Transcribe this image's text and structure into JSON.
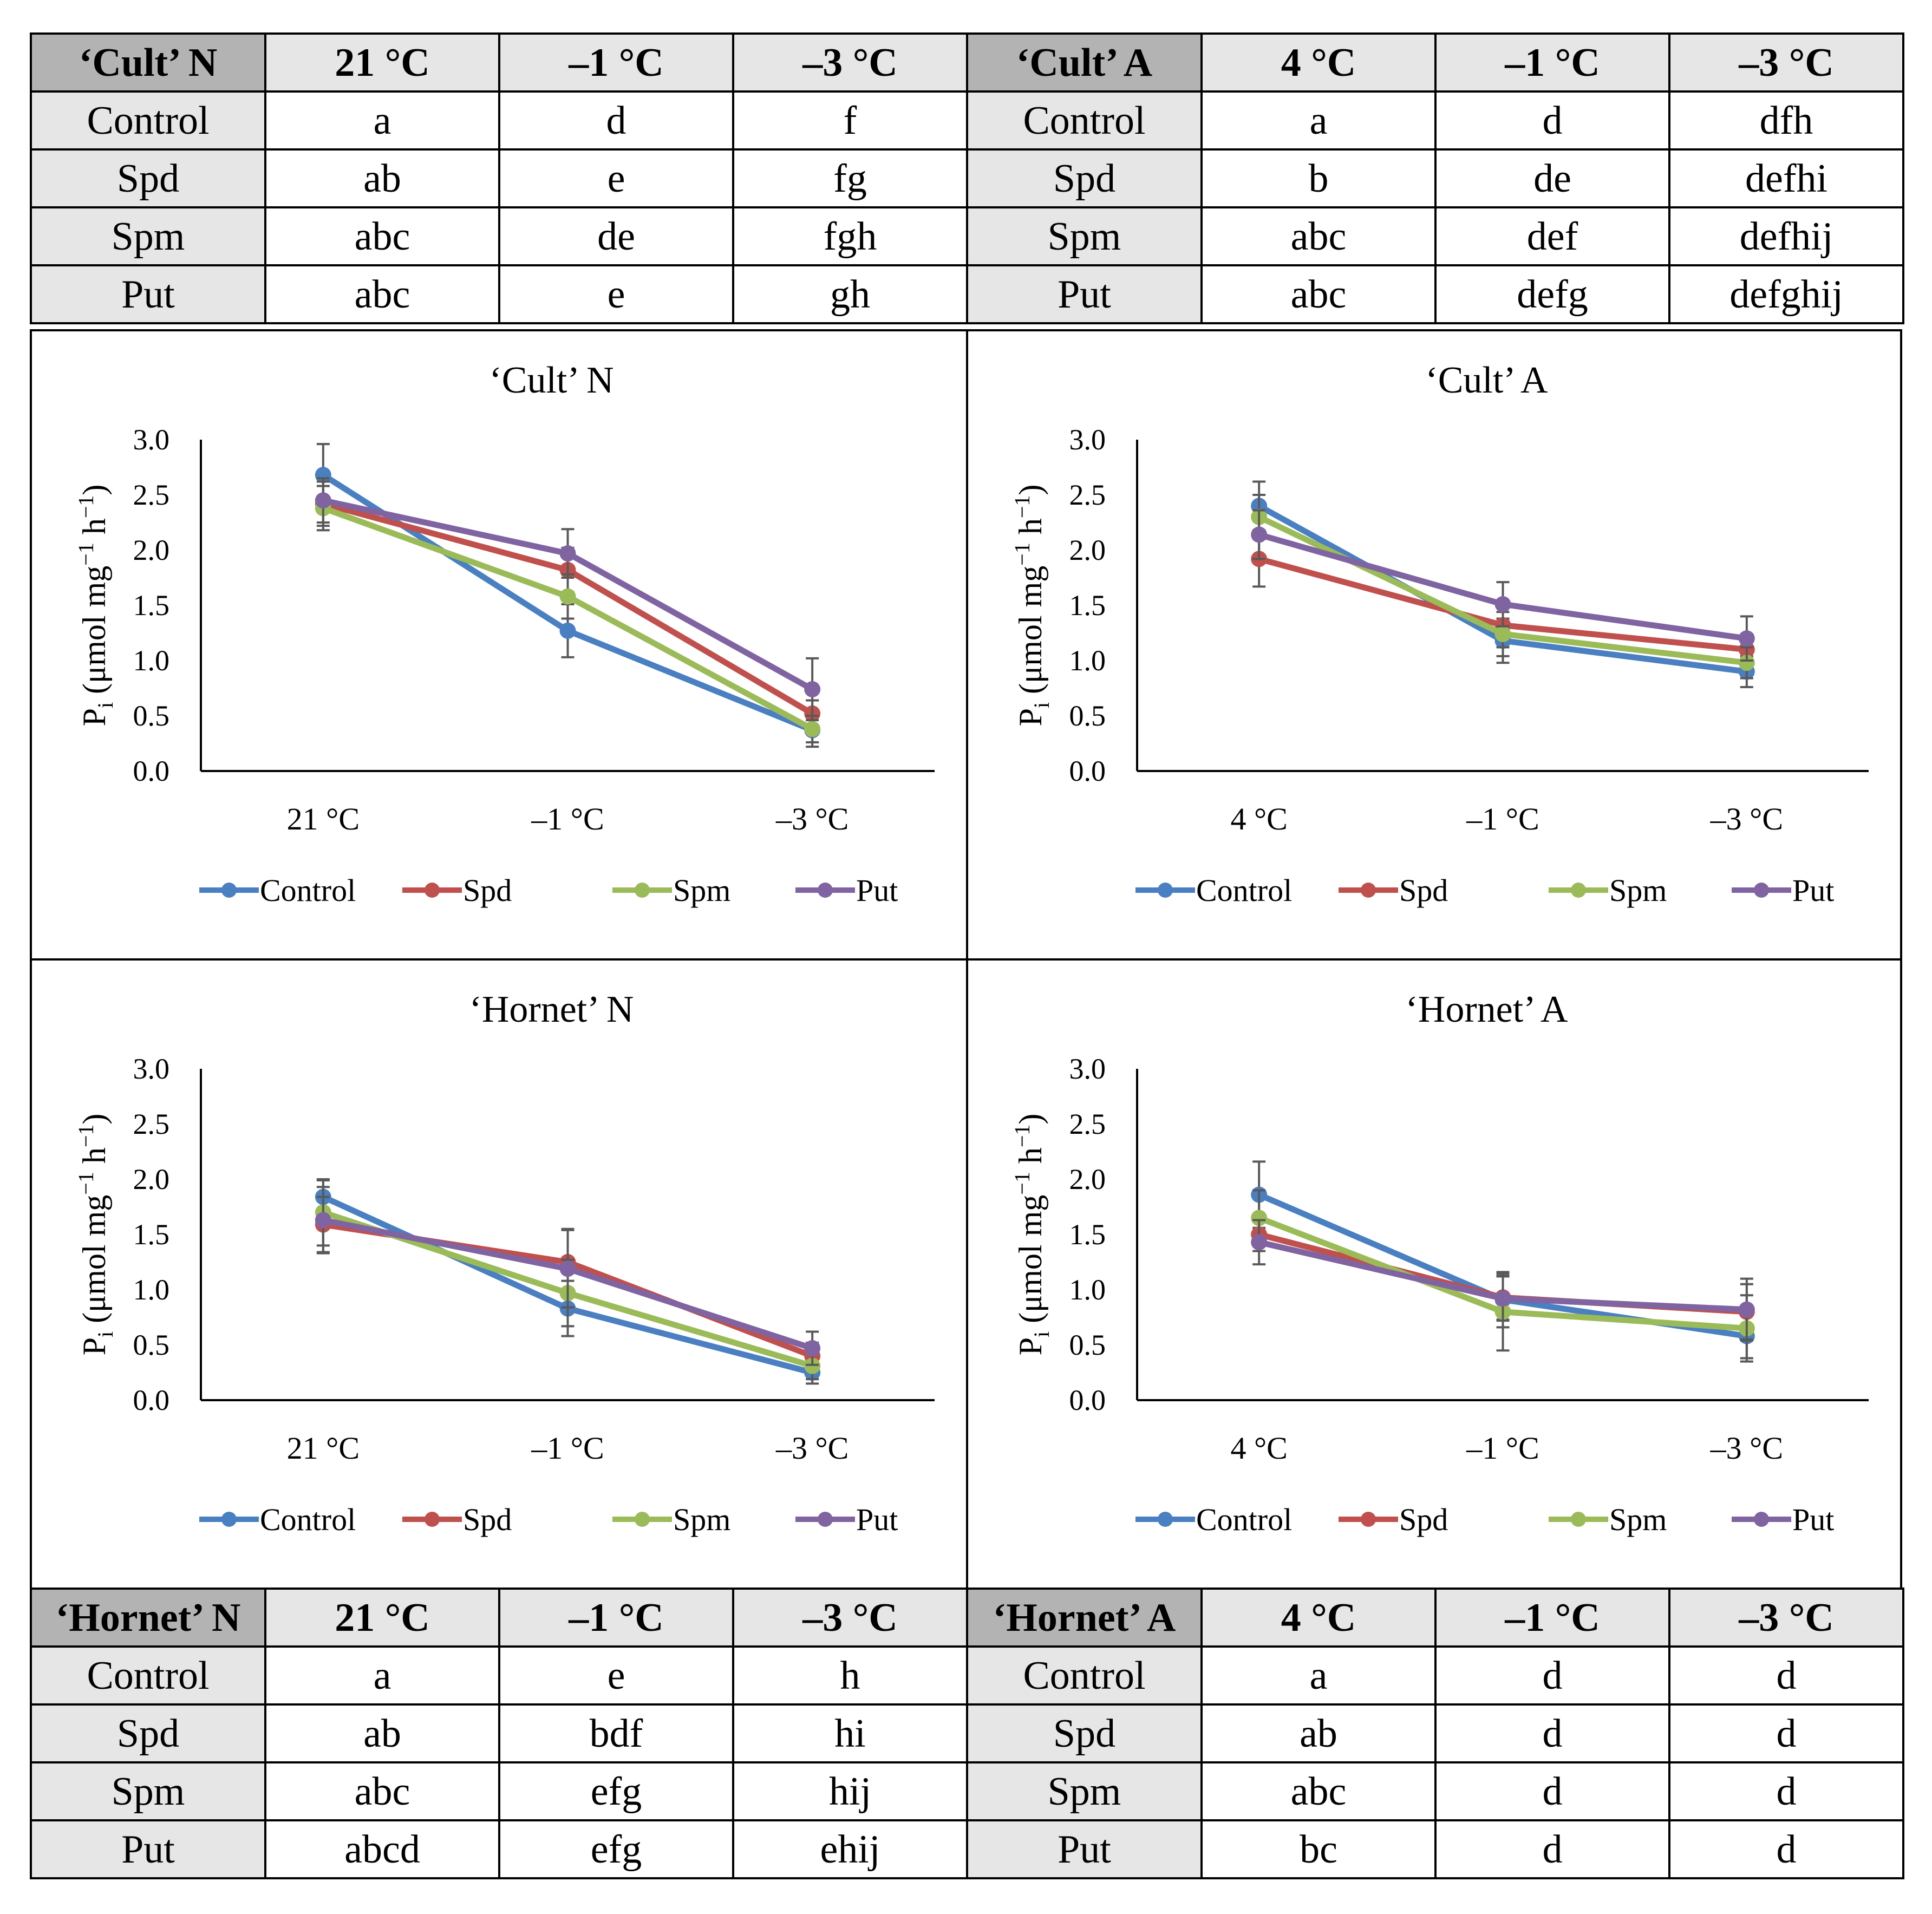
{
  "colors": {
    "Control": "#4a7fc1",
    "Spd": "#c0504d",
    "Spm": "#9bbb59",
    "Put": "#8064a2",
    "header_dark": "#b3b3b3",
    "header_light": "#e6e6e6",
    "axis": "#000000",
    "errorbar": "#595959"
  },
  "tables": {
    "cult_n": {
      "title": "‘Cult’ N",
      "headers": [
        "21 °C",
        "–1 °C",
        "–3 °C"
      ],
      "rows": [
        {
          "label": "Control",
          "cells": [
            "a",
            "d",
            "f"
          ]
        },
        {
          "label": "Spd",
          "cells": [
            "ab",
            "e",
            "fg"
          ]
        },
        {
          "label": "Spm",
          "cells": [
            "abc",
            "de",
            "fgh"
          ]
        },
        {
          "label": "Put",
          "cells": [
            "abc",
            "e",
            "gh"
          ]
        }
      ]
    },
    "cult_a": {
      "title": "‘Cult’ A",
      "headers": [
        "4 °C",
        "–1 °C",
        "–3 °C"
      ],
      "rows": [
        {
          "label": "Control",
          "cells": [
            "a",
            "d",
            "dfh"
          ]
        },
        {
          "label": "Spd",
          "cells": [
            "b",
            "de",
            "defhi"
          ]
        },
        {
          "label": "Spm",
          "cells": [
            "abc",
            "def",
            "defhij"
          ]
        },
        {
          "label": "Put",
          "cells": [
            "abc",
            "defg",
            "defghij"
          ]
        }
      ]
    },
    "hornet_n": {
      "title": "‘Hornet’ N",
      "headers": [
        "21 °C",
        "–1 °C",
        "–3 °C"
      ],
      "rows": [
        {
          "label": "Control",
          "cells": [
            "a",
            "e",
            "h"
          ]
        },
        {
          "label": "Spd",
          "cells": [
            "ab",
            "bdf",
            "hi"
          ]
        },
        {
          "label": "Spm",
          "cells": [
            "abc",
            "efg",
            "hij"
          ]
        },
        {
          "label": "Put",
          "cells": [
            "abcd",
            "efg",
            "ehij"
          ]
        }
      ]
    },
    "hornet_a": {
      "title": "‘Hornet’ A",
      "headers": [
        "4 °C",
        "–1 °C",
        "–3 °C"
      ],
      "rows": [
        {
          "label": "Control",
          "cells": [
            "a",
            "d",
            "d"
          ]
        },
        {
          "label": "Spd",
          "cells": [
            "ab",
            "d",
            "d"
          ]
        },
        {
          "label": "Spm",
          "cells": [
            "abc",
            "d",
            "d"
          ]
        },
        {
          "label": "Put",
          "cells": [
            "bc",
            "d",
            "d"
          ]
        }
      ]
    }
  },
  "chart_data": [
    {
      "id": "cult_n",
      "type": "line",
      "title": "‘Cult’ N",
      "categories": [
        "21  °C",
        "–1  °C",
        "–3  °C"
      ],
      "ylabel": "Pi (μmol mg−1 h−1)",
      "ylabel_parts": [
        "P",
        "i",
        " (μmol mg",
        "−1",
        " h",
        "−1",
        ")"
      ],
      "ylim": [
        0,
        3
      ],
      "yticks": [
        "0.0",
        "0.5",
        "1.0",
        "1.5",
        "2.0",
        "2.5",
        "3.0"
      ],
      "legend": "bottom",
      "series": [
        {
          "name": "Control",
          "values": [
            2.68,
            1.27,
            0.37
          ],
          "errors": [
            0.28,
            0.24,
            0.15
          ]
        },
        {
          "name": "Spd",
          "values": [
            2.42,
            1.82,
            0.52
          ],
          "errors": [
            0.2,
            0.2,
            0.12
          ]
        },
        {
          "name": "Spm",
          "values": [
            2.38,
            1.58,
            0.38
          ],
          "errors": [
            0.2,
            0.2,
            0.12
          ]
        },
        {
          "name": "Put",
          "values": [
            2.45,
            1.97,
            0.74
          ],
          "errors": [
            0.2,
            0.22,
            0.28
          ]
        }
      ]
    },
    {
      "id": "cult_a",
      "type": "line",
      "title": "‘Cult’ A",
      "categories": [
        "4  °C",
        "–1  °C",
        "–3  °C"
      ],
      "ylabel": "Pi (μmol mg−1 h−1)",
      "ylabel_parts": [
        "P",
        "i",
        " (μmol mg",
        "−1",
        " h",
        "−1",
        ")"
      ],
      "ylim": [
        0,
        3
      ],
      "yticks": [
        "0.0",
        "0.5",
        "1.0",
        "1.5",
        "2.0",
        "2.5",
        "3.0"
      ],
      "legend": "bottom",
      "series": [
        {
          "name": "Control",
          "values": [
            2.4,
            1.18,
            0.9
          ],
          "errors": [
            0.22,
            0.2,
            0.14
          ]
        },
        {
          "name": "Spd",
          "values": [
            1.92,
            1.32,
            1.1
          ],
          "errors": [
            0.25,
            0.2,
            0.14
          ]
        },
        {
          "name": "Spm",
          "values": [
            2.3,
            1.24,
            0.98
          ],
          "errors": [
            0.2,
            0.2,
            0.14
          ]
        },
        {
          "name": "Put",
          "values": [
            2.14,
            1.51,
            1.2
          ],
          "errors": [
            0.22,
            0.2,
            0.2
          ]
        }
      ]
    },
    {
      "id": "hornet_n",
      "type": "line",
      "title": "‘Hornet’ N",
      "categories": [
        "21  °C",
        "–1  °C",
        "–3  °C"
      ],
      "ylabel": "Pi (μmol mg−1 h−1)",
      "ylabel_parts": [
        "P",
        "i",
        " (μmol mg",
        "−1",
        " h",
        "−1",
        ")"
      ],
      "ylim": [
        0,
        3
      ],
      "yticks": [
        "0.0",
        "0.5",
        "1.0",
        "1.5",
        "2.0",
        "2.5",
        "3.0"
      ],
      "legend": "bottom",
      "series": [
        {
          "name": "Control",
          "values": [
            1.84,
            0.83,
            0.25
          ],
          "errors": [
            0.15,
            0.25,
            0.1
          ]
        },
        {
          "name": "Spd",
          "values": [
            1.59,
            1.25,
            0.4
          ],
          "errors": [
            0.25,
            0.3,
            0.12
          ]
        },
        {
          "name": "Spm",
          "values": [
            1.7,
            0.97,
            0.31
          ],
          "errors": [
            0.3,
            0.3,
            0.12
          ]
        },
        {
          "name": "Put",
          "values": [
            1.63,
            1.19,
            0.47
          ],
          "errors": [
            0.3,
            0.35,
            0.15
          ]
        }
      ]
    },
    {
      "id": "hornet_a",
      "type": "line",
      "title": "‘Hornet’ A",
      "categories": [
        "4  °C",
        "–1  °C",
        "–3  °C"
      ],
      "ylabel": "Pi (μmol mg−1 h−1)",
      "ylabel_parts": [
        "P",
        "i",
        " (μmol mg",
        "−1",
        " h",
        "−1",
        ")"
      ],
      "ylim": [
        0,
        3
      ],
      "yticks": [
        "0.0",
        "0.5",
        "1.0",
        "1.5",
        "2.0",
        "2.5",
        "3.0"
      ],
      "legend": "bottom",
      "series": [
        {
          "name": "Control",
          "values": [
            1.86,
            0.91,
            0.58
          ],
          "errors": [
            0.3,
            0.25,
            0.2
          ]
        },
        {
          "name": "Spd",
          "values": [
            1.5,
            0.93,
            0.8
          ],
          "errors": [
            0.15,
            0.2,
            0.25
          ]
        },
        {
          "name": "Spm",
          "values": [
            1.65,
            0.8,
            0.65
          ],
          "errors": [
            0.25,
            0.35,
            0.3
          ]
        },
        {
          "name": "Put",
          "values": [
            1.43,
            0.92,
            0.82
          ],
          "errors": [
            0.2,
            0.2,
            0.28
          ]
        }
      ]
    }
  ]
}
